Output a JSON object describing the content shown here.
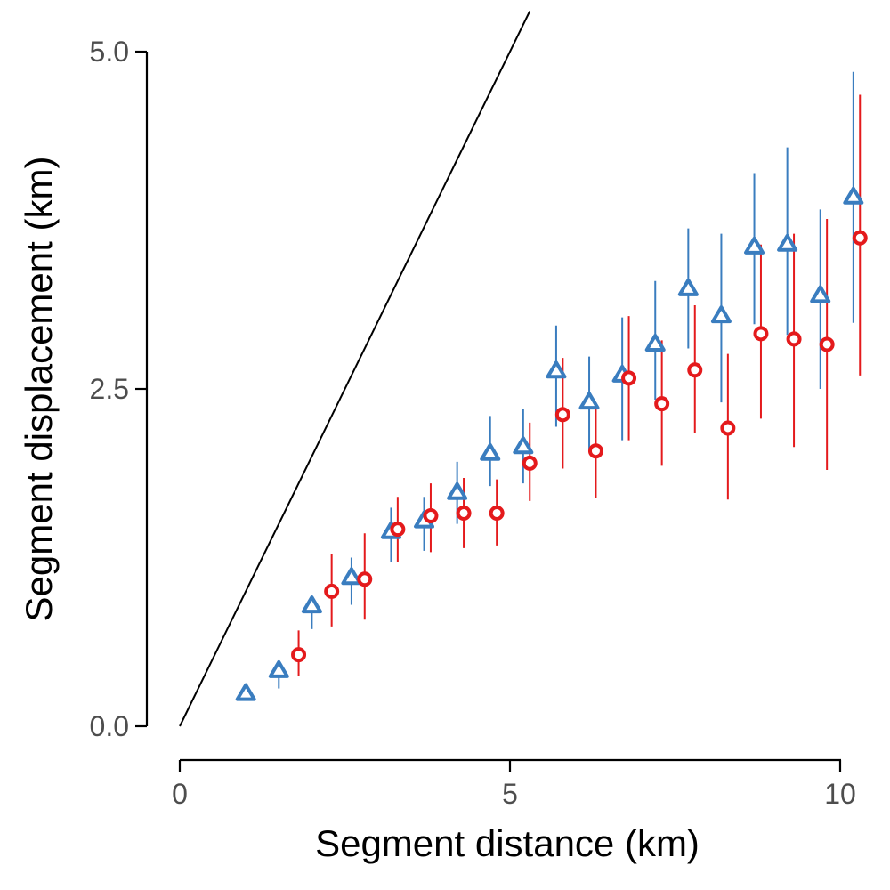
{
  "chart_data": {
    "type": "scatter",
    "xlabel": "Segment distance (km)",
    "ylabel": "Segment displacement (km)",
    "xlim": [
      0,
      10.6
    ],
    "ylim": [
      -0.05,
      5.2
    ],
    "xticks": [
      0,
      5,
      10
    ],
    "xtick_labels": [
      "0",
      "5",
      "10"
    ],
    "yticks": [
      0.0,
      2.5,
      5.0
    ],
    "ytick_labels": [
      "0.0",
      "2.5",
      "5.0"
    ],
    "grid": false,
    "legend": "none",
    "reference_line": {
      "x": [
        0,
        5.3
      ],
      "y": [
        0,
        5.3
      ]
    },
    "series": [
      {
        "marker": "triangle",
        "color": "#3a7dbf",
        "points": [
          {
            "x": 1.0,
            "y": 0.24,
            "lo": 0.24,
            "hi": 0.24
          },
          {
            "x": 1.5,
            "y": 0.41,
            "lo": 0.28,
            "hi": 0.47
          },
          {
            "x": 2.0,
            "y": 0.89,
            "lo": 0.72,
            "hi": 0.93
          },
          {
            "x": 2.6,
            "y": 1.1,
            "lo": 0.9,
            "hi": 1.25
          },
          {
            "x": 3.2,
            "y": 1.44,
            "lo": 1.22,
            "hi": 1.62
          },
          {
            "x": 3.7,
            "y": 1.52,
            "lo": 1.3,
            "hi": 1.7
          },
          {
            "x": 4.2,
            "y": 1.73,
            "lo": 1.5,
            "hi": 1.96
          },
          {
            "x": 4.7,
            "y": 2.02,
            "lo": 1.78,
            "hi": 2.3
          },
          {
            "x": 5.2,
            "y": 2.07,
            "lo": 1.8,
            "hi": 2.35
          },
          {
            "x": 5.7,
            "y": 2.63,
            "lo": 2.22,
            "hi": 2.97
          },
          {
            "x": 6.2,
            "y": 2.4,
            "lo": 2.05,
            "hi": 2.74
          },
          {
            "x": 6.7,
            "y": 2.6,
            "lo": 2.12,
            "hi": 3.03
          },
          {
            "x": 7.2,
            "y": 2.83,
            "lo": 2.42,
            "hi": 3.3
          },
          {
            "x": 7.7,
            "y": 3.24,
            "lo": 2.8,
            "hi": 3.69
          },
          {
            "x": 8.2,
            "y": 3.04,
            "lo": 2.4,
            "hi": 3.65
          },
          {
            "x": 8.7,
            "y": 3.55,
            "lo": 2.98,
            "hi": 4.1
          },
          {
            "x": 9.2,
            "y": 3.57,
            "lo": 2.9,
            "hi": 4.29
          },
          {
            "x": 9.7,
            "y": 3.19,
            "lo": 2.5,
            "hi": 3.83
          },
          {
            "x": 10.2,
            "y": 3.92,
            "lo": 2.99,
            "hi": 4.85
          }
        ]
      },
      {
        "marker": "circle",
        "color": "#e41a1c",
        "points": [
          {
            "x": 1.8,
            "y": 0.53,
            "lo": 0.37,
            "hi": 0.71
          },
          {
            "x": 2.3,
            "y": 1.0,
            "lo": 0.74,
            "hi": 1.28
          },
          {
            "x": 2.8,
            "y": 1.09,
            "lo": 0.79,
            "hi": 1.43
          },
          {
            "x": 3.3,
            "y": 1.46,
            "lo": 1.22,
            "hi": 1.7
          },
          {
            "x": 3.8,
            "y": 1.56,
            "lo": 1.29,
            "hi": 1.8
          },
          {
            "x": 4.3,
            "y": 1.58,
            "lo": 1.32,
            "hi": 1.84
          },
          {
            "x": 4.8,
            "y": 1.58,
            "lo": 1.34,
            "hi": 1.83
          },
          {
            "x": 5.3,
            "y": 1.95,
            "lo": 1.67,
            "hi": 2.25
          },
          {
            "x": 5.8,
            "y": 2.31,
            "lo": 1.91,
            "hi": 2.73
          },
          {
            "x": 6.3,
            "y": 2.04,
            "lo": 1.69,
            "hi": 2.4
          },
          {
            "x": 6.8,
            "y": 2.58,
            "lo": 2.12,
            "hi": 3.04
          },
          {
            "x": 7.3,
            "y": 2.39,
            "lo": 1.93,
            "hi": 2.86
          },
          {
            "x": 7.8,
            "y": 2.64,
            "lo": 2.17,
            "hi": 3.12
          },
          {
            "x": 8.3,
            "y": 2.21,
            "lo": 1.68,
            "hi": 2.76
          },
          {
            "x": 8.8,
            "y": 2.91,
            "lo": 2.28,
            "hi": 3.57
          },
          {
            "x": 9.3,
            "y": 2.87,
            "lo": 2.07,
            "hi": 3.65
          },
          {
            "x": 9.8,
            "y": 2.83,
            "lo": 1.9,
            "hi": 3.76
          },
          {
            "x": 10.3,
            "y": 3.62,
            "lo": 2.6,
            "hi": 4.68
          }
        ]
      }
    ]
  }
}
